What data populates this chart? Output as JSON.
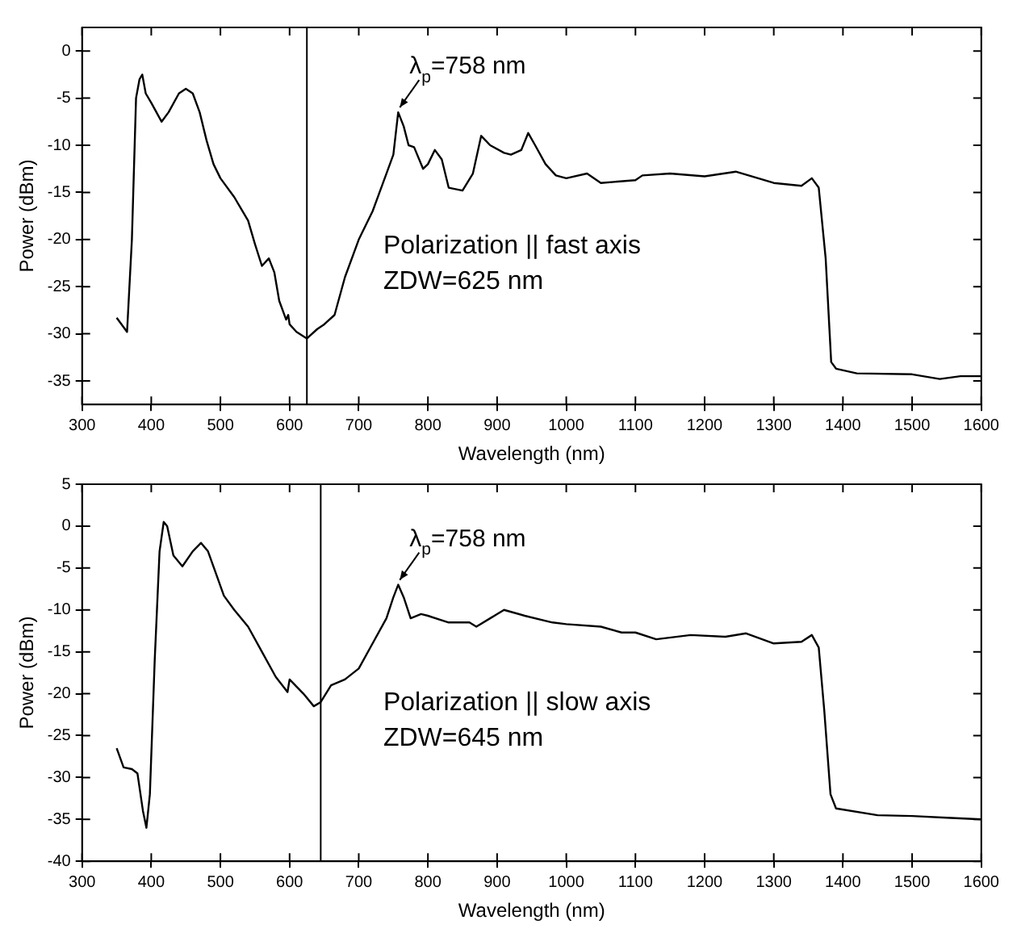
{
  "chart_data": [
    {
      "type": "line",
      "xlabel": "Wavelength (nm)",
      "ylabel": "Power (dBm)",
      "xlim": [
        300,
        1600
      ],
      "xticks": [
        300,
        400,
        500,
        600,
        700,
        800,
        900,
        1000,
        1100,
        1200,
        1300,
        1400,
        1500,
        1600
      ],
      "ylim": [
        -37.5,
        2.5
      ],
      "yticks": [
        -35,
        -30,
        -25,
        -20,
        -15,
        -10,
        -5,
        0
      ],
      "grid": false,
      "legend": false,
      "marker": "none",
      "line_style": "solid",
      "ref_lines": [
        {
          "axis": "x",
          "value": 625,
          "color": "#000000"
        }
      ],
      "annotations": [
        {
          "text": "λ$_{p}$=758 nm",
          "x": 757,
          "y": -6.5
        },
        "Polarization || fast axis",
        "ZDW=625 nm"
      ],
      "series": [
        {
          "color": "#000000",
          "x": [
            350,
            365,
            372,
            378,
            383,
            387,
            392,
            400,
            415,
            425,
            440,
            450,
            460,
            470,
            480,
            490,
            500,
            520,
            540,
            550,
            560,
            570,
            578,
            585,
            595,
            598,
            600,
            610,
            625,
            640,
            650,
            665,
            680,
            700,
            720,
            740,
            750,
            757,
            765,
            772,
            780,
            793,
            800,
            810,
            820,
            830,
            850,
            865,
            877,
            890,
            910,
            920,
            935,
            945,
            955,
            970,
            985,
            1000,
            1030,
            1050,
            1100,
            1110,
            1150,
            1200,
            1245,
            1300,
            1340,
            1355,
            1365,
            1375,
            1383,
            1390,
            1420,
            1500,
            1540,
            1570,
            1600
          ],
          "values": [
            -28.3,
            -29.8,
            -20,
            -5,
            -3,
            -2.5,
            -4.5,
            -5.5,
            -7.5,
            -6.5,
            -4.5,
            -4,
            -4.5,
            -6.5,
            -9.5,
            -12,
            -13.5,
            -15.5,
            -18,
            -20.5,
            -22.8,
            -22,
            -23.5,
            -26.5,
            -28.5,
            -28,
            -29,
            -29.8,
            -30.5,
            -29.5,
            -29,
            -28,
            -24,
            -20,
            -17,
            -13,
            -11,
            -6.5,
            -8,
            -10,
            -10.2,
            -12.5,
            -12,
            -10.5,
            -11.5,
            -14.5,
            -14.8,
            -13,
            -9,
            -10,
            -10.8,
            -11,
            -10.5,
            -8.7,
            -10,
            -12,
            -13.2,
            -13.5,
            -13,
            -14,
            -13.7,
            -13.2,
            -13,
            -13.3,
            -12.8,
            -14,
            -14.3,
            -13.5,
            -14.5,
            -22,
            -33,
            -33.7,
            -34.2,
            -34.3,
            -34.8,
            -34.5,
            -34.5
          ]
        }
      ]
    },
    {
      "type": "line",
      "xlabel": "Wavelength (nm)",
      "ylabel": "Power (dBm)",
      "xlim": [
        300,
        1600
      ],
      "xticks": [
        300,
        400,
        500,
        600,
        700,
        800,
        900,
        1000,
        1100,
        1200,
        1300,
        1400,
        1500,
        1600
      ],
      "ylim": [
        -40,
        5
      ],
      "yticks": [
        -40,
        -35,
        -30,
        -25,
        -20,
        -15,
        -10,
        -5,
        0,
        5
      ],
      "grid": false,
      "legend": false,
      "marker": "none",
      "line_style": "solid",
      "ref_lines": [
        {
          "axis": "x",
          "value": 645,
          "color": "#000000"
        }
      ],
      "annotations": [
        {
          "text": "λ$_{p}$=758 nm",
          "x": 757,
          "y": -7
        },
        "Polarization || slow axis",
        "ZDW=645 nm"
      ],
      "series": [
        {
          "color": "#000000",
          "x": [
            350,
            360,
            372,
            380,
            388,
            393,
            398,
            405,
            412,
            418,
            423,
            432,
            445,
            460,
            472,
            482,
            495,
            505,
            520,
            540,
            560,
            580,
            597,
            600,
            620,
            635,
            645,
            660,
            680,
            700,
            720,
            740,
            750,
            757,
            765,
            775,
            790,
            800,
            830,
            860,
            870,
            890,
            910,
            940,
            980,
            1000,
            1050,
            1080,
            1100,
            1130,
            1180,
            1230,
            1260,
            1300,
            1340,
            1355,
            1365,
            1373,
            1382,
            1390,
            1450,
            1500,
            1550,
            1600
          ],
          "values": [
            -26.5,
            -28.8,
            -29,
            -29.5,
            -34,
            -36,
            -32,
            -16,
            -3,
            0.5,
            0,
            -3.5,
            -4.8,
            -3,
            -2,
            -3,
            -6,
            -8.3,
            -10,
            -12,
            -15,
            -18,
            -19.8,
            -18.3,
            -20,
            -21.5,
            -21,
            -19,
            -18.3,
            -17,
            -14,
            -11,
            -8.5,
            -7,
            -8.5,
            -11,
            -10.5,
            -10.7,
            -11.5,
            -11.5,
            -12,
            -11,
            -10,
            -10.7,
            -11.5,
            -11.7,
            -12,
            -12.7,
            -12.7,
            -13.5,
            -13,
            -13.2,
            -12.8,
            -14,
            -13.8,
            -13,
            -14.5,
            -22,
            -32,
            -33.7,
            -34.5,
            -34.6,
            -34.8,
            -35
          ]
        }
      ]
    }
  ]
}
